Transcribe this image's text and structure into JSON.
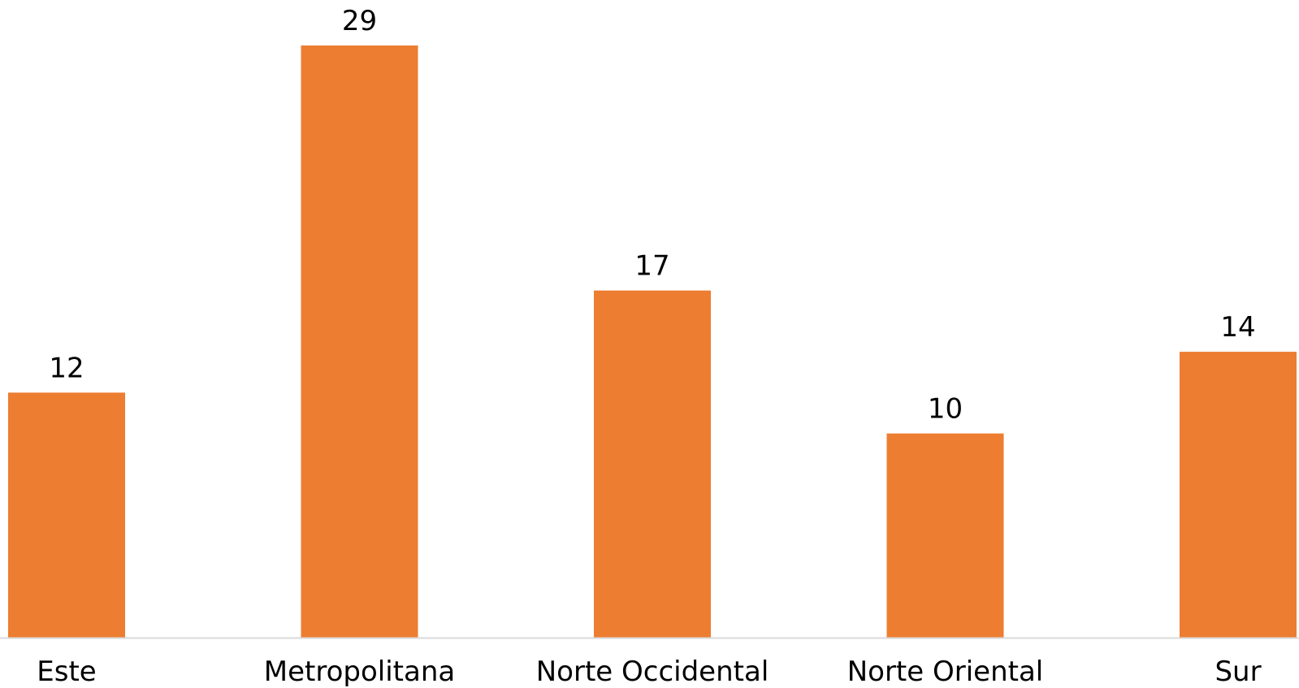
{
  "chart_data": {
    "type": "bar",
    "categories": [
      "Este",
      "Metropolitana",
      "Norte Occidental",
      "Norte Oriental",
      "Sur"
    ],
    "values": [
      12,
      29,
      17,
      10,
      14
    ],
    "title": "",
    "xlabel": "",
    "ylabel": "",
    "ylim": [
      0,
      29
    ],
    "data_labels": true,
    "grid": false,
    "legend": "none",
    "colors": {
      "bar": "#ED7D31",
      "axis": "#D9D9D9",
      "text": "#000000"
    }
  }
}
